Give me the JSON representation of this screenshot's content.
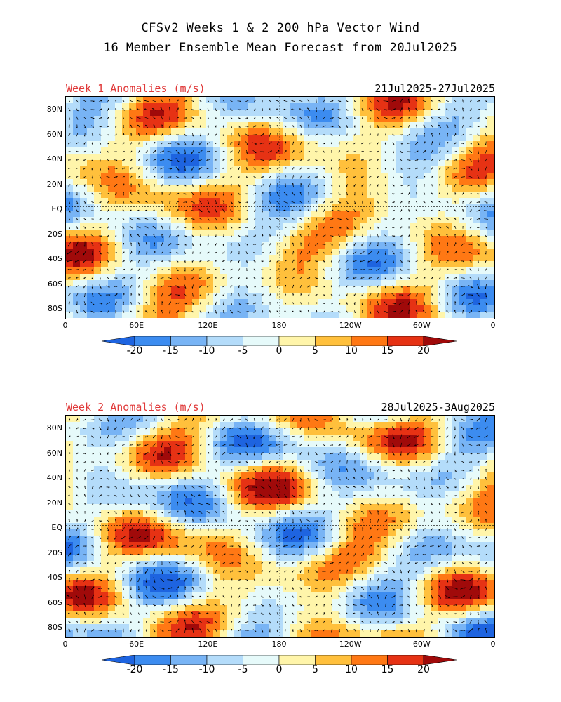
{
  "title": {
    "line1": "CFSv2 Weeks 1 & 2 200 hPa Vector Wind",
    "line2": "16 Member Ensemble Mean Forecast from 20Jul2025"
  },
  "panels": [
    {
      "label": "Week 1 Anomalies (m/s)",
      "dates": "21Jul2025-27Jul2025",
      "seed": 7
    },
    {
      "label": "Week 2 Anomalies (m/s)",
      "dates": "28Jul2025-3Aug2025",
      "seed": 19
    }
  ],
  "axes": {
    "lat_labels": [
      "80N",
      "60N",
      "40N",
      "20N",
      "EQ",
      "20S",
      "40S",
      "60S",
      "80S"
    ],
    "lon_labels": [
      "0",
      "60E",
      "120E",
      "180",
      "120W",
      "60W",
      "0"
    ]
  },
  "colorbar": {
    "labels": [
      "-20",
      "-15",
      "-10",
      "-5",
      "0",
      "5",
      "10",
      "15",
      "20"
    ],
    "colors": [
      "#1e64e0",
      "#3c8cf0",
      "#78b4f5",
      "#b4dcfa",
      "#e6fafa",
      "#fff5aa",
      "#ffc03c",
      "#ff7814",
      "#e63214",
      "#a00a0a"
    ]
  }
}
